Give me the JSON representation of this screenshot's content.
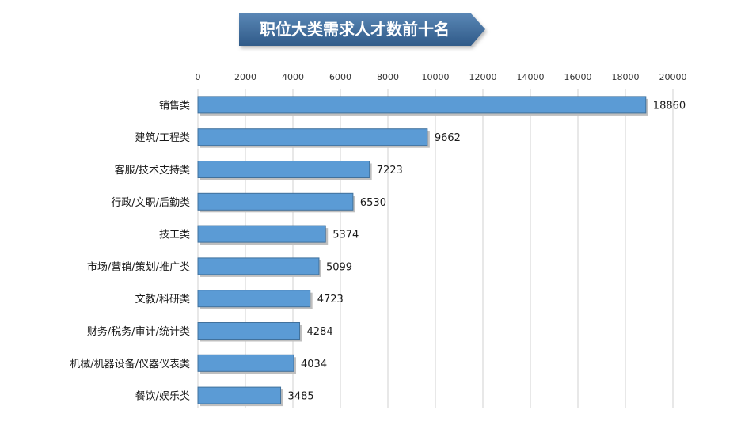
{
  "chart_data": {
    "type": "bar",
    "orientation": "horizontal",
    "title": "职位大类需求人才数前十名",
    "categories": [
      "销售类",
      "建筑/工程类",
      "客服/技术支持类",
      "行政/文职/后勤类",
      "技工类",
      "市场/营销/策划/推广类",
      "文教/科研类",
      "财务/税务/审计/统计类",
      "机械/机器设备/仪器仪表类",
      "餐饮/娱乐类"
    ],
    "values": [
      18860,
      9662,
      7223,
      6530,
      5374,
      5099,
      4723,
      4284,
      4034,
      3485
    ],
    "xlim": [
      0,
      20000
    ],
    "xticks": [
      0,
      2000,
      4000,
      6000,
      8000,
      10000,
      12000,
      14000,
      16000,
      18000,
      20000
    ],
    "x_axis_position": "top",
    "grid": true,
    "legend": "none",
    "colors": {
      "bar": "#5b9bd5",
      "bar_edge": "#41719c",
      "bar_shadow": "#bfbfbf",
      "title_banner": "#3f6b9a",
      "gridline": "#d0d0d0"
    }
  }
}
